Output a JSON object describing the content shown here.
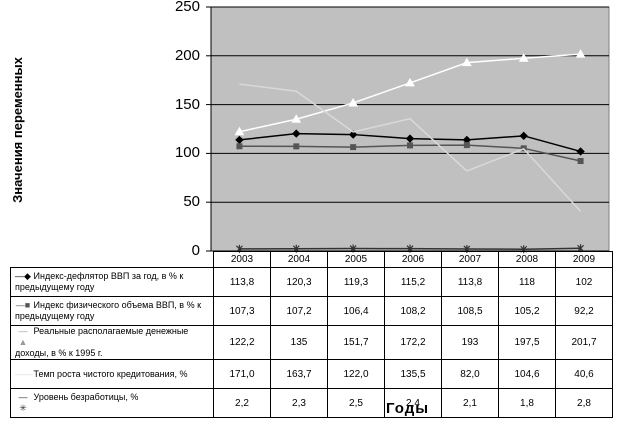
{
  "chart_data": {
    "type": "line",
    "ylabel": "Значения переменных",
    "xlabel": "Годы",
    "categories": [
      "2003",
      "2004",
      "2005",
      "2006",
      "2007",
      "2008",
      "2009"
    ],
    "ylim": [
      0,
      250
    ],
    "yticks": [
      "0",
      "50",
      "100",
      "150",
      "200",
      "250"
    ],
    "grid": true,
    "series": [
      {
        "name": "Индекс-дефлятор ВВП за год, в % к предыдущему году",
        "values": [
          113.8,
          120.3,
          119.3,
          115.2,
          113.8,
          118,
          102
        ],
        "labels": [
          "113,8",
          "120,3",
          "119,3",
          "115,2",
          "113,8",
          "118",
          "102"
        ],
        "color": "#000000",
        "marker": "diamond"
      },
      {
        "name": "Индекс физического объема ВВП, в % к предыдущему году",
        "values": [
          107.3,
          107.2,
          106.4,
          108.2,
          108.5,
          105.2,
          92.2
        ],
        "labels": [
          "107,3",
          "107,2",
          "106,4",
          "108,2",
          "108,5",
          "105,2",
          "92,2"
        ],
        "color": "#555555",
        "marker": "square"
      },
      {
        "name": "Реальные располагаемые денежные доходы, в % к 1995 г.",
        "values": [
          122.2,
          135,
          151.7,
          172.2,
          193,
          197.5,
          201.7
        ],
        "labels": [
          "122,2",
          "135",
          "151,7",
          "172,2",
          "193",
          "197,5",
          "201,7"
        ],
        "color": "#ffffff",
        "marker": "triangle"
      },
      {
        "name": "Темп роста чистого кредитования, %",
        "values": [
          171.0,
          163.7,
          122.0,
          135.5,
          82.0,
          104.6,
          40.6
        ],
        "labels": [
          "171,0",
          "163,7",
          "122,0",
          "135,5",
          "82,0",
          "104,6",
          "40,6"
        ],
        "color": "#d9d9d9",
        "marker": "none"
      },
      {
        "name": "Уровень безработицы, %",
        "values": [
          2.2,
          2.3,
          2.5,
          2.4,
          2.1,
          1.8,
          2.8
        ],
        "labels": [
          "2,2",
          "2,3",
          "2,5",
          "2,4",
          "2,1",
          "1,8",
          "2,8"
        ],
        "color": "#333333",
        "marker": "star"
      }
    ]
  }
}
